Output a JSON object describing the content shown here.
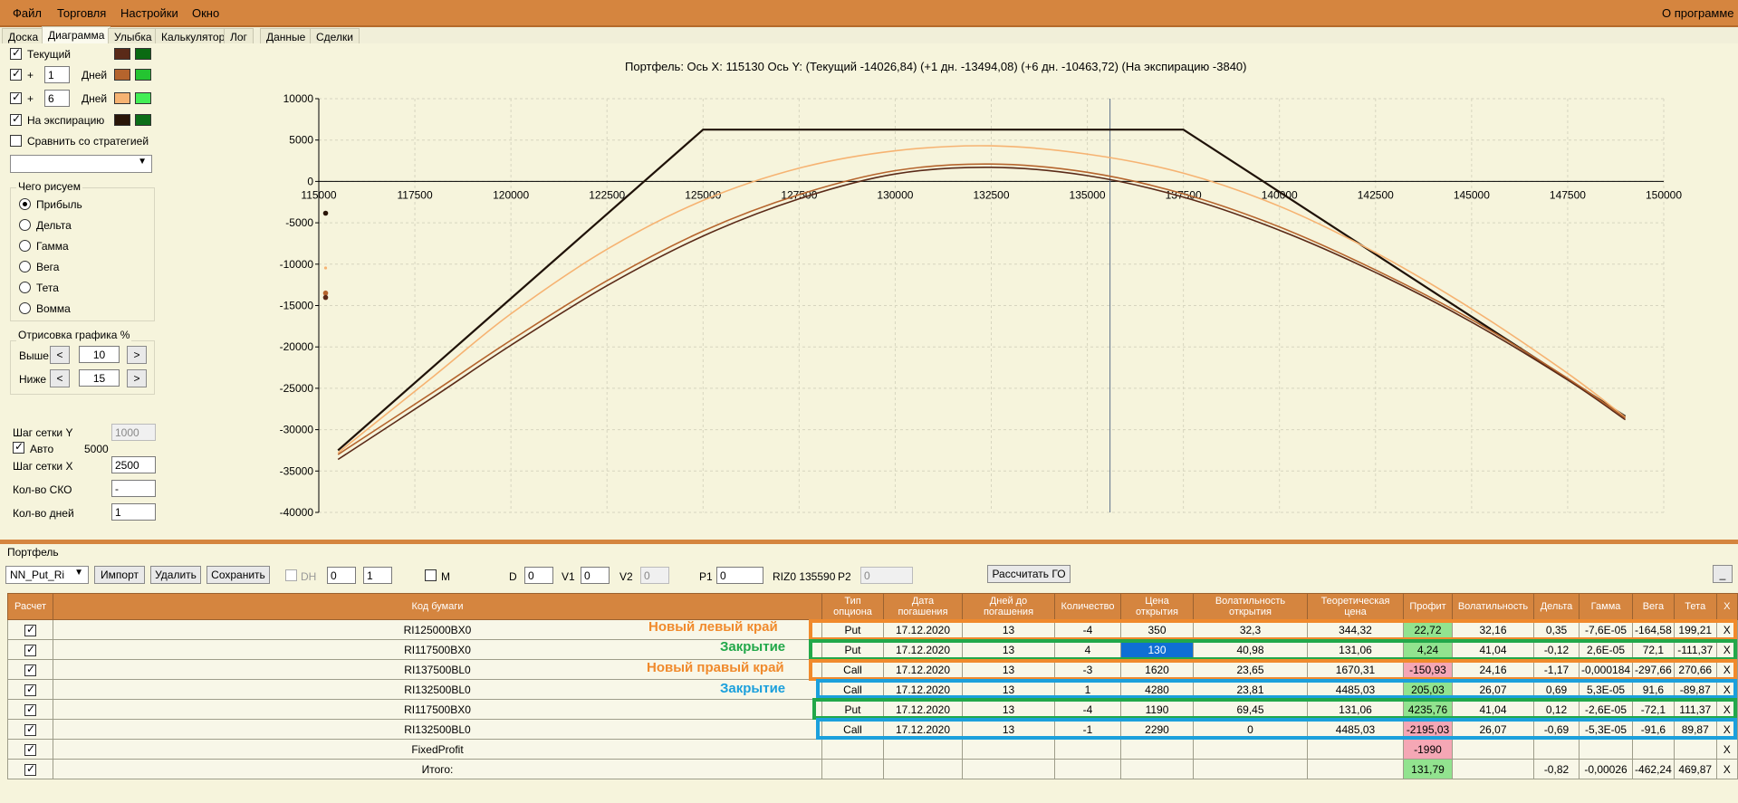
{
  "menu": [
    "Файл",
    "Торговля",
    "Настройки",
    "Окно"
  ],
  "menu_right": "О программе",
  "tabs": [
    "Доска",
    "Диаграмма",
    "Улыбка",
    "Калькулятор",
    "Лог",
    "Данные",
    "Сделки"
  ],
  "left": {
    "current": "Текущий",
    "plus": "+",
    "days1": "1",
    "days2": "6",
    "days_label": "Дней",
    "expiry": "На экспирацию",
    "compare": "Сравнить со стратегией",
    "what_title": "Чего рисуем",
    "radios": [
      "Прибыль",
      "Дельта",
      "Гамма",
      "Вега",
      "Тета",
      "Вомма"
    ],
    "draw_title": "Отрисовка графика %",
    "above": "Выше",
    "below": "Ниже",
    "above_val": "10",
    "below_val": "15",
    "lt": "<",
    "gt": ">",
    "grid_y": "Шаг сетки Y",
    "grid_y_val": "1000",
    "auto": "Авто",
    "auto_val": "5000",
    "grid_x": "Шаг сетки X",
    "grid_x_val": "2500",
    "sko": "Кол-во СКО",
    "sko_val": "-",
    "days_count": "Кол-во дней",
    "days_count_val": "1",
    "colors": {
      "current": [
        "#5a2a18",
        "#0a6a12"
      ],
      "d1": [
        "#b5642d",
        "#24c431"
      ],
      "d6": [
        "#f6b372",
        "#42ee55"
      ],
      "expiry": [
        "#2a1608",
        "#0c6e18"
      ]
    }
  },
  "chart_title": "Портфель:  Ось X:  115130  Ось Y:   (Текущий -14026,84)   (+1 дн. -13494,08)   (+6 дн. -10463,72)   (На экспирацию -3840)",
  "chart_data": {
    "type": "line",
    "xlim": [
      115000,
      150000
    ],
    "ylim": [
      -40000,
      10000
    ],
    "x_ticks": [
      "115000",
      "117500",
      "120000",
      "122500",
      "125000",
      "127500",
      "130000",
      "132500",
      "135000",
      "137500",
      "140000",
      "142500",
      "145000",
      "147500",
      "150000"
    ],
    "y_ticks": [
      "10000",
      "5000",
      "0",
      "-5000",
      "-10000",
      "-15000",
      "-20000",
      "-25000",
      "-30000",
      "-35000",
      "-40000"
    ],
    "cursor_x": 135590,
    "series": [
      {
        "color": "#1f1208",
        "points": [
          [
            115500,
            -32500
          ],
          [
            125000,
            6260
          ],
          [
            137500,
            6260
          ],
          [
            149000,
            -28400
          ]
        ]
      },
      {
        "color": "#f6b372",
        "points": [
          [
            115500,
            -32800
          ],
          [
            118000,
            -23500
          ],
          [
            120000,
            -16000
          ],
          [
            122500,
            -8200
          ],
          [
            125000,
            -2300
          ],
          [
            127500,
            1600
          ],
          [
            130000,
            3700
          ],
          [
            132500,
            4300
          ],
          [
            135000,
            3300
          ],
          [
            137500,
            1000
          ],
          [
            140000,
            -3000
          ],
          [
            142500,
            -8600
          ],
          [
            145000,
            -15400
          ],
          [
            147500,
            -23200
          ],
          [
            149000,
            -28500
          ]
        ]
      },
      {
        "color": "#5a2a18",
        "points": [
          [
            115500,
            -33600
          ],
          [
            118000,
            -26000
          ],
          [
            120000,
            -19800
          ],
          [
            122500,
            -12600
          ],
          [
            125000,
            -6600
          ],
          [
            127500,
            -2100
          ],
          [
            130000,
            900
          ],
          [
            132500,
            1700
          ],
          [
            135000,
            700
          ],
          [
            137500,
            -1900
          ],
          [
            140000,
            -5900
          ],
          [
            142500,
            -11000
          ],
          [
            145000,
            -17000
          ],
          [
            147500,
            -24000
          ],
          [
            149000,
            -28800
          ]
        ]
      },
      {
        "color": "#b5642d",
        "points": [
          [
            115500,
            -33000
          ],
          [
            118000,
            -25400
          ],
          [
            120000,
            -19200
          ],
          [
            122500,
            -12000
          ],
          [
            125000,
            -6000
          ],
          [
            127500,
            -1600
          ],
          [
            130000,
            1300
          ],
          [
            132500,
            2100
          ],
          [
            135000,
            1100
          ],
          [
            137500,
            -1500
          ],
          [
            140000,
            -5500
          ],
          [
            142500,
            -10700
          ],
          [
            145000,
            -16700
          ],
          [
            147500,
            -23800
          ],
          [
            149000,
            -28600
          ]
        ]
      }
    ],
    "markers": [
      {
        "x": 115130,
        "y": -3840,
        "color": "#2a1608"
      },
      {
        "x": 115130,
        "y": -10463,
        "color": "#f6b372"
      },
      {
        "x": 115130,
        "y": -13494,
        "color": "#b5642d"
      },
      {
        "x": 115130,
        "y": -14026,
        "color": "#5a2a18"
      }
    ]
  },
  "bottom": {
    "portfolio": "Портфель",
    "name": "NN_Put_Ri",
    "import": "Импорт",
    "delete": "Удалить",
    "save": "Сохранить",
    "dh": "DH",
    "spin1": "0",
    "spin2": "1",
    "m": "M",
    "d": "D",
    "d_val": "0",
    "v1": "V1",
    "v1_val": "0",
    "v2": "V2",
    "v2_val": "0",
    "p1": "P1",
    "p1_val": "0",
    "riz": "RIZ0 135590",
    "p2": "P2",
    "p2_val": "0",
    "calc_go": "Рассчитать ГО",
    "min": "_"
  },
  "table": {
    "headers": [
      "Расчет",
      "Код бумаги",
      "Тип опциона",
      "Дата погашения",
      "Дней до погашения",
      "Количество",
      "Цена открытия",
      "Волатильность открытия",
      "Теоретическая цена",
      "Профит",
      "Волатильность",
      "Дельта",
      "Гамма",
      "Вега",
      "Тета",
      "X"
    ],
    "rows": [
      [
        "RI125000BX0",
        "Put",
        "17.12.2020",
        "13",
        "-4",
        "350",
        "32,3",
        "344,32",
        "22,72",
        "32,16",
        "0,35",
        "-7,6E-05",
        "-164,58",
        "199,21",
        "X"
      ],
      [
        "RI117500BX0",
        "Put",
        "17.12.2020",
        "13",
        "4",
        "130",
        "40,98",
        "131,06",
        "4,24",
        "41,04",
        "-0,12",
        "2,6E-05",
        "72,1",
        "-111,37",
        "X"
      ],
      [
        "RI137500BL0",
        "Call",
        "17.12.2020",
        "13",
        "-3",
        "1620",
        "23,65",
        "1670,31",
        "-150,93",
        "24,16",
        "-1,17",
        "-0,000184",
        "-297,66",
        "270,66",
        "X"
      ],
      [
        "RI132500BL0",
        "Call",
        "17.12.2020",
        "13",
        "1",
        "4280",
        "23,81",
        "4485,03",
        "205,03",
        "26,07",
        "0,69",
        "5,3E-05",
        "91,6",
        "-89,87",
        "X"
      ],
      [
        "RI117500BX0",
        "Put",
        "17.12.2020",
        "13",
        "-4",
        "1190",
        "69,45",
        "131,06",
        "4235,76",
        "41,04",
        "0,12",
        "-2,6E-05",
        "-72,1",
        "111,37",
        "X"
      ],
      [
        "RI132500BL0",
        "Call",
        "17.12.2020",
        "13",
        "-1",
        "2290",
        "0",
        "4485,03",
        "-2195,03",
        "26,07",
        "-0,69",
        "-5,3E-05",
        "-91,6",
        "89,87",
        "X"
      ],
      [
        "FixedProfit",
        "",
        "",
        "",
        "",
        "",
        "",
        "",
        "-1990",
        "",
        "",
        "",
        "",
        "",
        "X"
      ],
      [
        "Итого:",
        "",
        "",
        "",
        "",
        "",
        "",
        "",
        "131,79",
        "",
        "-0,82",
        "-0,00026",
        "-462,24",
        "469,87",
        "X"
      ]
    ]
  },
  "annotations": {
    "left_edge": "Новый левый край",
    "close1": "Закрытие",
    "right_edge": "Новый правый край",
    "close2": "Закрытие",
    "colors": {
      "orange": "#f08a2c",
      "green": "#22a84a",
      "blue": "#1ba0dc"
    }
  }
}
